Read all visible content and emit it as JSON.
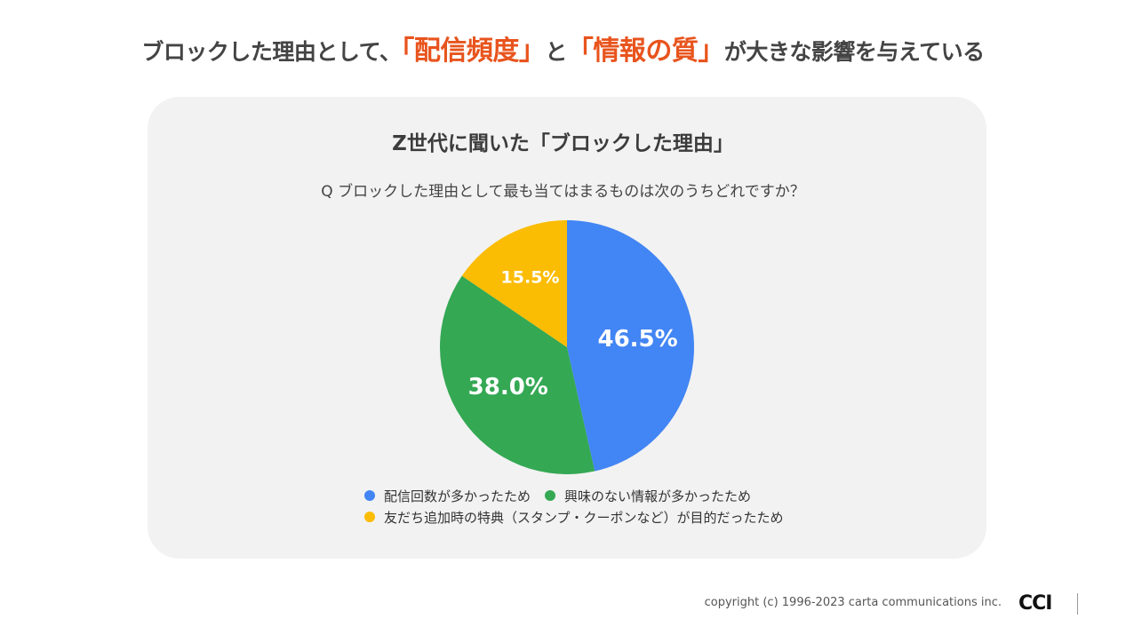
{
  "headline": {
    "pre": "ブロックした理由として、",
    "highlight1": "「配信頻度」",
    "mid": "と",
    "highlight2": "「情報の質」",
    "post": "が大きな影響を与えている",
    "highlight_color": "#e8541d"
  },
  "chart_data": {
    "type": "pie",
    "title": "Z世代に聞いた「ブロックした理由」",
    "subtitle": "Q ブロックした理由として最も当てはまるものは次のうちどれですか？",
    "slices": [
      {
        "label": "配信回数が多かったため",
        "value": 46.5,
        "value_label": "46.5%",
        "color": "#4285f4"
      },
      {
        "label": "興味のない情報が多かったため",
        "value": 38.0,
        "value_label": "38.0%",
        "color": "#34a853"
      },
      {
        "label": "友だち追加時の特典（スタンプ・クーポンなど）が目的だったため",
        "value": 15.5,
        "value_label": "15.5%",
        "color": "#fbbc04"
      }
    ],
    "legend_position": "bottom"
  },
  "footer": {
    "copyright": "copyright (c) 1996-2023 carta communications inc.",
    "logo_text": "CCI"
  }
}
